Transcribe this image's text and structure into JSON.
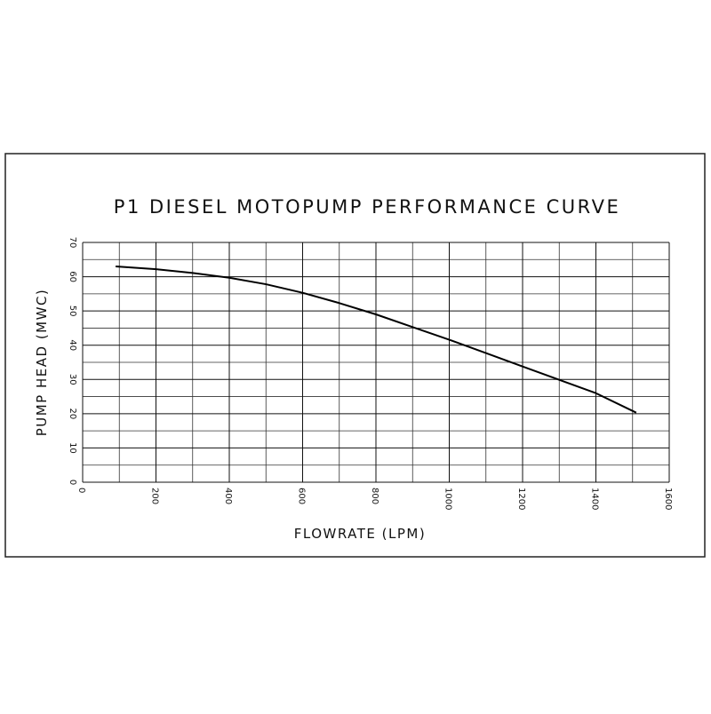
{
  "chart_data": {
    "type": "line",
    "title": "P1 DIESEL MOTOPUMP PERFORMANCE CURVE",
    "x_label": "FLOWRATE (LPM)",
    "y_label": "PUMP HEAD (MWC)",
    "x": [
      90,
      200,
      300,
      400,
      500,
      600,
      700,
      800,
      900,
      1000,
      1100,
      1200,
      1300,
      1400,
      1510
    ],
    "series": [
      {
        "color": "#000000",
        "values": [
          63,
          62.2,
          61.1,
          59.7,
          57.8,
          55.3,
          52.3,
          49,
          45.3,
          41.6,
          37.7,
          33.8,
          29.9,
          26,
          20.3
        ]
      }
    ],
    "xlim": [
      0,
      1600
    ],
    "xticks": [
      0,
      200,
      400,
      600,
      800,
      1000,
      1200,
      1400,
      1600
    ],
    "x_minor_ticks": [
      100,
      300,
      500,
      700,
      900,
      1100,
      1300,
      1500
    ],
    "ylim": [
      0,
      70
    ],
    "yticks": [
      0,
      10,
      20,
      30,
      40,
      50,
      60,
      70
    ],
    "y_minor_ticks": [
      5,
      15,
      25,
      35,
      45,
      55,
      65
    ],
    "grid": true
  }
}
